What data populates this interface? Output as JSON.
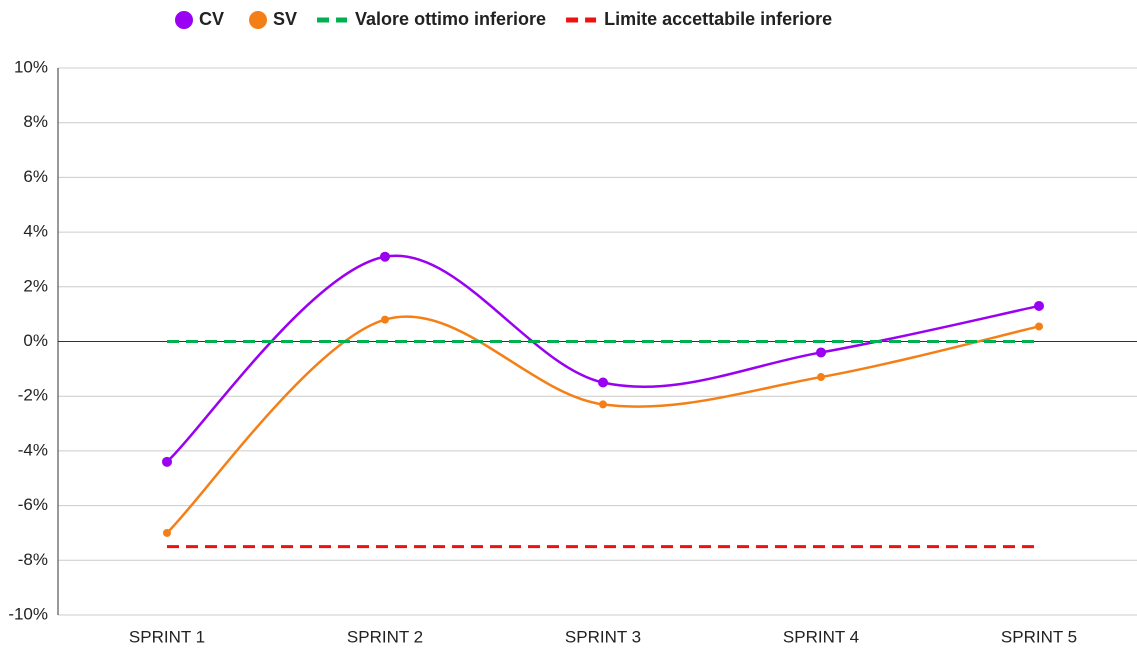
{
  "chart_data": {
    "type": "line",
    "categories": [
      "SPRINT 1",
      "SPRINT 2",
      "SPRINT 3",
      "SPRINT 4",
      "SPRINT 5"
    ],
    "series": [
      {
        "name": "CV",
        "color": "#9a00f2",
        "values": [
          -4.4,
          3.1,
          -1.5,
          -0.4,
          1.3
        ],
        "marker": true,
        "dashed": false
      },
      {
        "name": "SV",
        "color": "#f57f17",
        "values": [
          -7.0,
          0.8,
          -2.3,
          -1.3,
          0.55
        ],
        "marker": true,
        "dashed": false
      },
      {
        "name": "Valore ottimo inferiore",
        "color": "#00b050",
        "values": [
          0,
          0,
          0,
          0,
          0
        ],
        "marker": false,
        "dashed": true
      },
      {
        "name": "Limite accettabile inferiore",
        "color": "#ee1111",
        "values": [
          -7.5,
          -7.5,
          -7.5,
          -7.5,
          -7.5
        ],
        "marker": false,
        "dashed": true
      }
    ],
    "ylim": [
      -10,
      10
    ],
    "yticks": [
      {
        "value": -10,
        "label": "-10%"
      },
      {
        "value": -8,
        "label": "-8%"
      },
      {
        "value": -6,
        "label": "-6%"
      },
      {
        "value": -4,
        "label": "-4%"
      },
      {
        "value": -2,
        "label": "-2%"
      },
      {
        "value": 0,
        "label": "0%"
      },
      {
        "value": 2,
        "label": "2%"
      },
      {
        "value": 4,
        "label": "4%"
      },
      {
        "value": 6,
        "label": "6%"
      },
      {
        "value": 8,
        "label": "8%"
      },
      {
        "value": 10,
        "label": "10%"
      }
    ],
    "grid": true,
    "legend": "top"
  }
}
